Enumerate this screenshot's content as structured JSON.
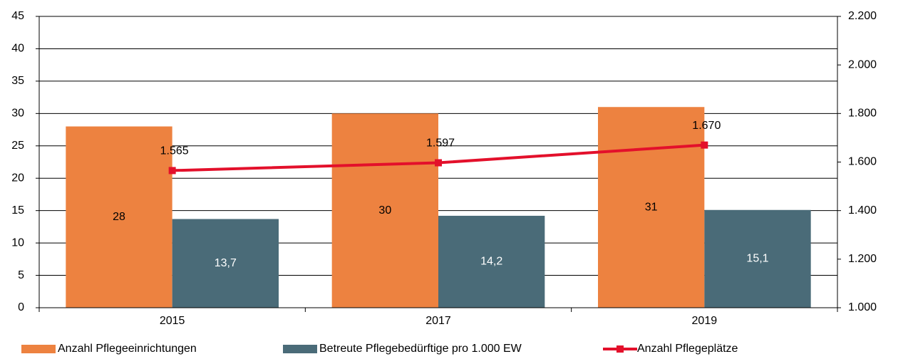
{
  "chart_data": {
    "type": "bar_line",
    "categories": [
      "2015",
      "2017",
      "2019"
    ],
    "series": [
      {
        "name": "Anzahl Pflegeeinrichtungen",
        "color": "#ed8240",
        "type": "bar",
        "values": [
          28,
          30,
          31
        ]
      },
      {
        "name": "Betreute Pflegebedürftige pro 1.000 EW",
        "color": "#4a6b78",
        "type": "bar",
        "values": [
          13.7,
          14.2,
          15.1
        ],
        "value_labels": [
          "13,7",
          "14,2",
          "15,1"
        ]
      },
      {
        "name": "Anzahl Pflegeplätze",
        "color": "#e3102b",
        "type": "line",
        "axis": "y2",
        "values": [
          1565,
          1597,
          1670
        ],
        "value_labels": [
          "1.565",
          "1.597",
          "1.670"
        ]
      }
    ],
    "ylim": [
      0,
      45
    ],
    "yticks": [
      0,
      5,
      10,
      15,
      20,
      25,
      30,
      35,
      40,
      45
    ],
    "y2lim": [
      1000,
      2200
    ],
    "y2ticks": [
      {
        "value": 1000,
        "label": "1.000"
      },
      {
        "value": 1200,
        "label": "1.200"
      },
      {
        "value": 1400,
        "label": "1.400"
      },
      {
        "value": 1600,
        "label": "1.600"
      },
      {
        "value": 1800,
        "label": "1.800"
      },
      {
        "value": 2000,
        "label": "2.000"
      },
      {
        "value": 2200,
        "label": "2.200"
      }
    ],
    "grid": true,
    "legend": "bottom"
  }
}
